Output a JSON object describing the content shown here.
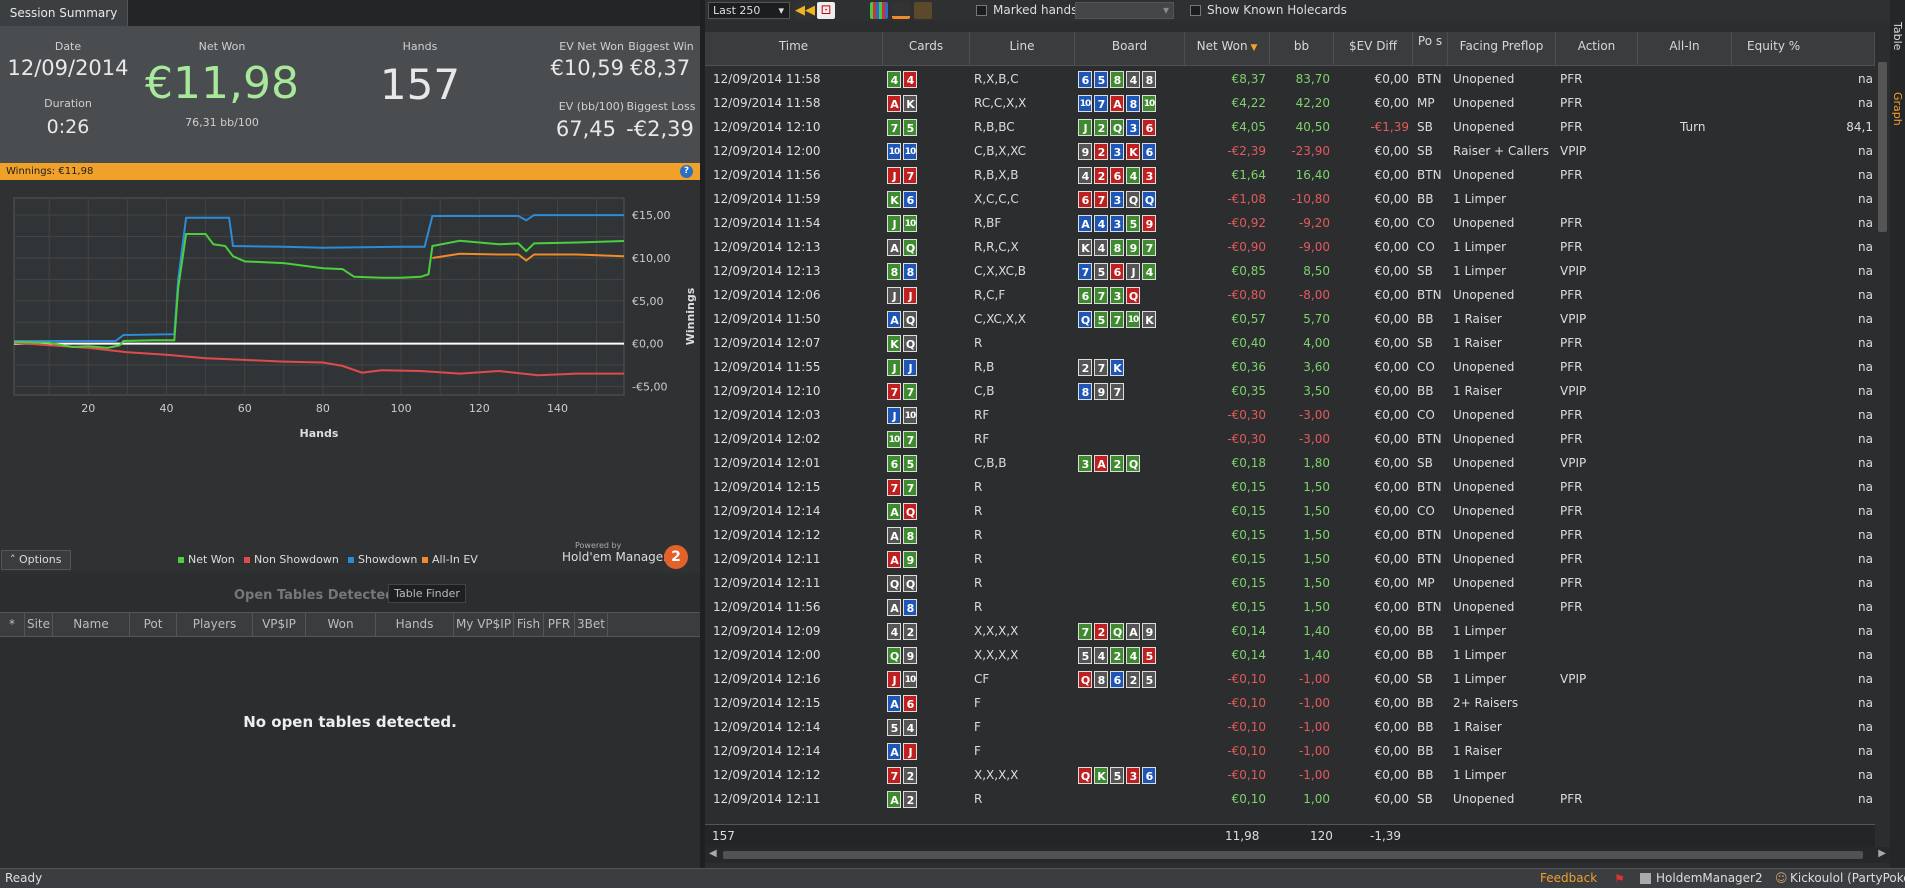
{
  "summary": {
    "tab": "Session Summary",
    "date_label": "Date",
    "date": "12/09/2014",
    "duration_label": "Duration",
    "duration": "0:26",
    "net_won_label": "Net Won",
    "net_won": "€11,98",
    "bb100": "76,31 bb/100",
    "hands_label": "Hands",
    "hands": "157",
    "ev_net_won_label": "EV Net Won",
    "ev_net_won": "€10,59",
    "ev_bb100_label": "EV (bb/100)",
    "ev_bb100": "67,45",
    "biggest_win_label": "Biggest Win",
    "biggest_win": "€8,37",
    "biggest_loss_label": "Biggest Loss",
    "biggest_loss": "-€2,39"
  },
  "winbar": {
    "text": "Winnings: €11,98",
    "help": "?"
  },
  "chart_data": {
    "type": "line",
    "xlabel": "Hands",
    "ylabel": "Winnings",
    "xlim": [
      1,
      157
    ],
    "ylim": [
      -6,
      17
    ],
    "x_ticks": [
      20,
      40,
      60,
      80,
      100,
      120,
      140
    ],
    "y_ticks": [
      {
        "v": 15,
        "t": "€15,00"
      },
      {
        "v": 10,
        "t": "€10,00"
      },
      {
        "v": 5,
        "t": "€5,00"
      },
      {
        "v": 0,
        "t": "€0,00"
      },
      {
        "v": -5,
        "t": "-€5,00"
      }
    ],
    "series": [
      {
        "name": "Net Won",
        "color": "#4ccf3c",
        "points": [
          [
            1,
            0.2
          ],
          [
            10,
            0.1
          ],
          [
            16,
            -0.4
          ],
          [
            20,
            -0.3
          ],
          [
            25,
            -0.5
          ],
          [
            28,
            -0.2
          ],
          [
            29,
            0.3
          ],
          [
            37,
            0.4
          ],
          [
            42,
            0.4
          ],
          [
            43,
            6.5
          ],
          [
            45,
            12.8
          ],
          [
            50,
            12.8
          ],
          [
            52,
            11.6
          ],
          [
            55,
            11.4
          ],
          [
            57,
            10.2
          ],
          [
            60,
            9.6
          ],
          [
            70,
            9.4
          ],
          [
            80,
            8.8
          ],
          [
            85,
            8.7
          ],
          [
            88,
            7.8
          ],
          [
            95,
            7.7
          ],
          [
            100,
            7.7
          ],
          [
            105,
            7.8
          ],
          [
            107,
            8.1
          ],
          [
            108,
            11.4
          ],
          [
            115,
            12.0
          ],
          [
            125,
            11.6
          ],
          [
            130,
            11.7
          ],
          [
            132,
            10.8
          ],
          [
            134,
            11.7
          ],
          [
            145,
            11.8
          ],
          [
            157,
            11.98
          ]
        ]
      },
      {
        "name": "Non Showdown",
        "color": "#e04a4a",
        "points": [
          [
            1,
            0.1
          ],
          [
            10,
            -0.2
          ],
          [
            20,
            -0.5
          ],
          [
            30,
            -1.0
          ],
          [
            40,
            -1.3
          ],
          [
            50,
            -1.7
          ],
          [
            60,
            -1.9
          ],
          [
            70,
            -2.1
          ],
          [
            80,
            -2.2
          ],
          [
            85,
            -2.6
          ],
          [
            90,
            -3.4
          ],
          [
            95,
            -3.1
          ],
          [
            105,
            -3.2
          ],
          [
            115,
            -3.5
          ],
          [
            125,
            -3.2
          ],
          [
            135,
            -3.7
          ],
          [
            145,
            -3.5
          ],
          [
            157,
            -3.5
          ]
        ]
      },
      {
        "name": "Showdown",
        "color": "#2d8bd6",
        "points": [
          [
            1,
            0.3
          ],
          [
            27,
            0.3
          ],
          [
            29,
            1.0
          ],
          [
            42,
            1.1
          ],
          [
            43,
            7.5
          ],
          [
            45,
            14.7
          ],
          [
            56,
            14.7
          ],
          [
            57,
            11.4
          ],
          [
            70,
            11.3
          ],
          [
            80,
            11.2
          ],
          [
            100,
            11.3
          ],
          [
            106,
            11.3
          ],
          [
            108,
            14.9
          ],
          [
            130,
            14.9
          ],
          [
            132,
            14.4
          ],
          [
            134,
            15.0
          ],
          [
            157,
            15.0
          ]
        ]
      },
      {
        "name": "All-In EV",
        "color": "#f08a2a",
        "points": [
          [
            108,
            10.0
          ],
          [
            115,
            10.5
          ],
          [
            125,
            10.4
          ],
          [
            130,
            10.4
          ],
          [
            132,
            9.7
          ],
          [
            134,
            10.4
          ],
          [
            145,
            10.4
          ],
          [
            157,
            10.2
          ]
        ]
      }
    ]
  },
  "graph_ui": {
    "options": "Options",
    "powered": "Powered by",
    "brand": "Hold'em Manager",
    "logo": "2"
  },
  "open_tables": {
    "title": "Open Tables Detected",
    "finder": "Table Finder",
    "columns": [
      "*",
      "Site",
      "Name",
      "Pot",
      "Players",
      "VP$IP",
      "Won",
      "Hands",
      "My VP$IP",
      "Fish",
      "PFR",
      "3Bet"
    ],
    "empty": "No open tables detected."
  },
  "toolbar": {
    "range": "Last 250",
    "marked_hands": "Marked hands",
    "show_holecards": "Show Known Holecards"
  },
  "table": {
    "columns": [
      "Time",
      "Cards",
      "Line",
      "Board",
      "Net Won",
      "bb",
      "$EV Diff",
      "Po s",
      "Facing Preflop",
      "Action",
      "All-In",
      "Equity %"
    ],
    "rows": [
      [
        "12/09/2014 11:58",
        "4s 4h",
        "R,X,B,C",
        "6d 5d 8s 4x 8x",
        "€8,37",
        "83,70",
        "€0,00",
        "BTN",
        "Unopened",
        "PFR",
        "",
        "na"
      ],
      [
        "12/09/2014 11:58",
        "Ah Kx",
        "RC,C,X,X",
        "10d 7d Ah 8d 10s",
        "€4,22",
        "42,20",
        "€0,00",
        "MP",
        "Unopened",
        "PFR",
        "",
        "na"
      ],
      [
        "12/09/2014 12:10",
        "7s 5s",
        "R,B,BC",
        "Js 2s Qs 3d 6h",
        "€4,05",
        "40,50",
        "-€1,39",
        "SB",
        "Unopened",
        "PFR",
        "Turn",
        "84,1"
      ],
      [
        "12/09/2014 12:00",
        "10d 10d",
        "C,B,X,XC",
        "9x 2h 3d Kh 6d",
        "-€2,39",
        "-23,90",
        "€0,00",
        "SB",
        "Raiser + Callers",
        "VPIP",
        "",
        "na"
      ],
      [
        "12/09/2014 11:56",
        "Jh 7h",
        "R,B,X,B",
        "4x 2h 6h 4s 3h",
        "€1,64",
        "16,40",
        "€0,00",
        "BTN",
        "Unopened",
        "PFR",
        "",
        "na"
      ],
      [
        "12/09/2014 11:59",
        "Ks 6d",
        "X,C,C,C",
        "6h 7h 3d Qx Qd",
        "-€1,08",
        "-10,80",
        "€0,00",
        "BB",
        "1 Limper",
        "",
        "",
        "na"
      ],
      [
        "12/09/2014 11:54",
        "Js 10s",
        "R,BF",
        "Ad 4d 3d 5s 9h",
        "-€0,92",
        "-9,20",
        "€0,00",
        "CO",
        "Unopened",
        "PFR",
        "",
        "na"
      ],
      [
        "12/09/2014 12:13",
        "Ax Qs",
        "R,R,C,X",
        "Kx 4x 8s 9s 7s",
        "-€0,90",
        "-9,00",
        "€0,00",
        "CO",
        "1 Limper",
        "PFR",
        "",
        "na"
      ],
      [
        "12/09/2014 12:13",
        "8s 8d",
        "C,X,XC,B",
        "7d 5x 6h Jx 4s",
        "€0,85",
        "8,50",
        "€0,00",
        "SB",
        "1 Limper",
        "VPIP",
        "",
        "na"
      ],
      [
        "12/09/2014 12:06",
        "Jx Jh",
        "R,C,F",
        "6s 7s 3s Qh",
        "-€0,80",
        "-8,00",
        "€0,00",
        "BTN",
        "Unopened",
        "PFR",
        "",
        "na"
      ],
      [
        "12/09/2014 11:50",
        "Ad Qx",
        "C,XC,X,X",
        "Qd 5s 7s 10s Kx",
        "€0,57",
        "5,70",
        "€0,00",
        "BB",
        "1 Raiser",
        "VPIP",
        "",
        "na"
      ],
      [
        "12/09/2014 12:07",
        "Ks Qx",
        "R",
        "",
        "€0,40",
        "4,00",
        "€0,00",
        "SB",
        "1 Raiser",
        "PFR",
        "",
        "na"
      ],
      [
        "12/09/2014 11:55",
        "Js Jd",
        "R,B",
        "2x 7x Kd",
        "€0,36",
        "3,60",
        "€0,00",
        "CO",
        "Unopened",
        "PFR",
        "",
        "na"
      ],
      [
        "12/09/2014 12:10",
        "7h 7s",
        "C,B",
        "8d 9x 7x",
        "€0,35",
        "3,50",
        "€0,00",
        "BB",
        "1 Raiser",
        "VPIP",
        "",
        "na"
      ],
      [
        "12/09/2014 12:03",
        "Jd 10x",
        "RF",
        "",
        "-€0,30",
        "-3,00",
        "€0,00",
        "CO",
        "Unopened",
        "PFR",
        "",
        "na"
      ],
      [
        "12/09/2014 12:02",
        "10s 7s",
        "RF",
        "",
        "-€0,30",
        "-3,00",
        "€0,00",
        "BTN",
        "Unopened",
        "PFR",
        "",
        "na"
      ],
      [
        "12/09/2014 12:01",
        "6s 5s",
        "C,B,B",
        "3s Ah 2s Qs",
        "€0,18",
        "1,80",
        "€0,00",
        "SB",
        "Unopened",
        "VPIP",
        "",
        "na"
      ],
      [
        "12/09/2014 12:15",
        "7h 7s",
        "R",
        "",
        "€0,15",
        "1,50",
        "€0,00",
        "BTN",
        "Unopened",
        "PFR",
        "",
        "na"
      ],
      [
        "12/09/2014 12:14",
        "As Qh",
        "R",
        "",
        "€0,15",
        "1,50",
        "€0,00",
        "CO",
        "Unopened",
        "PFR",
        "",
        "na"
      ],
      [
        "12/09/2014 12:12",
        "Ax 8s",
        "R",
        "",
        "€0,15",
        "1,50",
        "€0,00",
        "BTN",
        "Unopened",
        "PFR",
        "",
        "na"
      ],
      [
        "12/09/2014 12:11",
        "Ah 9s",
        "R",
        "",
        "€0,15",
        "1,50",
        "€0,00",
        "BTN",
        "Unopened",
        "PFR",
        "",
        "na"
      ],
      [
        "12/09/2014 12:11",
        "Qx Qx",
        "R",
        "",
        "€0,15",
        "1,50",
        "€0,00",
        "MP",
        "Unopened",
        "PFR",
        "",
        "na"
      ],
      [
        "12/09/2014 11:56",
        "Ax 8d",
        "R",
        "",
        "€0,15",
        "1,50",
        "€0,00",
        "BTN",
        "Unopened",
        "PFR",
        "",
        "na"
      ],
      [
        "12/09/2014 12:09",
        "4x 2x",
        "X,X,X,X",
        "7s 2h Qs Ax 9x",
        "€0,14",
        "1,40",
        "€0,00",
        "BB",
        "1 Limper",
        "",
        "",
        "na"
      ],
      [
        "12/09/2014 12:00",
        "Qs 9x",
        "X,X,X,X",
        "5x 4x 2s 4s 5h",
        "€0,14",
        "1,40",
        "€0,00",
        "BB",
        "1 Limper",
        "",
        "",
        "na"
      ],
      [
        "12/09/2014 12:16",
        "Jh 10x",
        "CF",
        "Qh 8x 6d 2x 5x",
        "-€0,10",
        "-1,00",
        "€0,00",
        "SB",
        "1 Limper",
        "VPIP",
        "",
        "na"
      ],
      [
        "12/09/2014 12:15",
        "Ad 6h",
        "F",
        "",
        "-€0,10",
        "-1,00",
        "€0,00",
        "BB",
        "2+ Raisers",
        "",
        "",
        "na"
      ],
      [
        "12/09/2014 12:14",
        "5x 4x",
        "F",
        "",
        "-€0,10",
        "-1,00",
        "€0,00",
        "BB",
        "1 Raiser",
        "",
        "",
        "na"
      ],
      [
        "12/09/2014 12:14",
        "Ad Jh",
        "F",
        "",
        "-€0,10",
        "-1,00",
        "€0,00",
        "BB",
        "1 Raiser",
        "",
        "",
        "na"
      ],
      [
        "12/09/2014 12:12",
        "7h 2x",
        "X,X,X,X",
        "Qh Ks 5x 3h 6d",
        "-€0,10",
        "-1,00",
        "€0,00",
        "BB",
        "1 Limper",
        "",
        "",
        "na"
      ],
      [
        "12/09/2014 12:11",
        "As 2x",
        "R",
        "",
        "€0,10",
        "1,00",
        "€0,00",
        "SB",
        "Unopened",
        "PFR",
        "",
        "na"
      ]
    ],
    "totals": {
      "hands": "157",
      "net": "11,98",
      "bb": "120",
      "ev": "-1,39"
    }
  },
  "side_tabs": [
    "Table",
    "Graph"
  ],
  "status": {
    "left": "Ready",
    "feedback": "Feedback",
    "app": "HoldemManager2",
    "user": "Kickoulol (PartyPoker)"
  }
}
